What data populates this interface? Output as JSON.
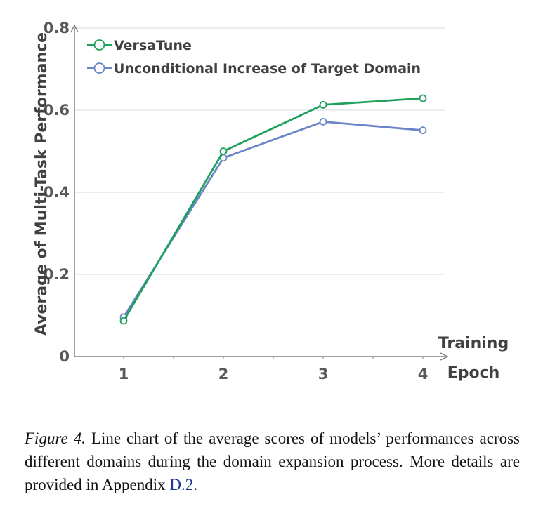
{
  "chart_data": {
    "type": "line",
    "x": [
      1,
      2,
      3,
      4
    ],
    "x_tick_labels": [
      "1",
      "2",
      "3",
      "4"
    ],
    "series": [
      {
        "name": "VersaTune",
        "color": "#1fa05c",
        "values": [
          0.087,
          0.5,
          0.613,
          0.629
        ]
      },
      {
        "name": "Unconditional Increase of Target Domain",
        "color": "#6a86c6",
        "values": [
          0.096,
          0.484,
          0.572,
          0.551
        ]
      }
    ],
    "xlabel": [
      "Training",
      "Epoch"
    ],
    "ylabel": "Average of Multi-Task Performance",
    "ylim": [
      0,
      0.8
    ],
    "y_ticks": [
      0,
      0.2,
      0.4,
      0.6,
      0.8
    ],
    "y_tick_labels": [
      "0",
      "0.2",
      "0.4",
      "0.6",
      "0.8"
    ],
    "grid": "horizontal",
    "legend_position": "top-left"
  },
  "caption": {
    "label": "Figure 4.",
    "text": " Line chart of the average scores of models’ performances across different domains during the domain expansion process. More details are provided in Appendix ",
    "ref": "D.2",
    "end": "."
  },
  "colors": {
    "grid": "#dfe3e8",
    "axis": "#808080"
  }
}
